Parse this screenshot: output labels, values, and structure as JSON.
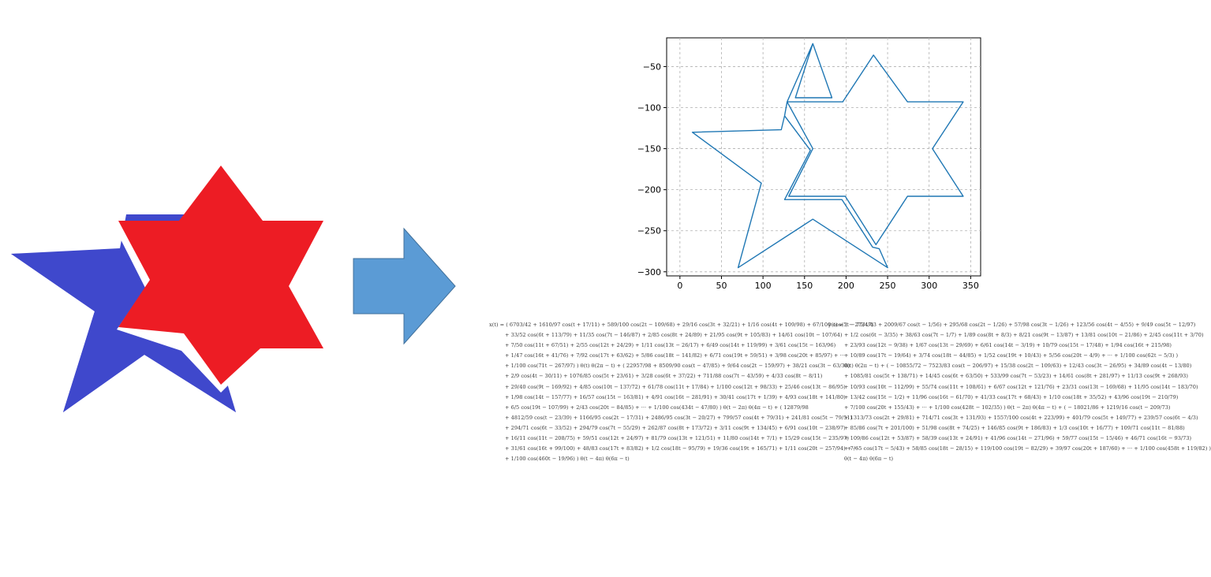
{
  "colors": {
    "blue_star": "#3f48cc",
    "red_star": "#ed1c24",
    "arrow_fill": "#5b9bd5",
    "arrow_stroke": "#41719c",
    "plot_line": "#1f77b4"
  },
  "chart_data": {
    "type": "line",
    "title": "",
    "xlabel": "",
    "ylabel": "",
    "xlim": [
      -16,
      362
    ],
    "ylim": [
      -305,
      -15
    ],
    "grid": true,
    "x_ticks": [
      "0",
      "50",
      "100",
      "150",
      "200",
      "250",
      "300",
      "350"
    ],
    "y_ticks": [
      "-50",
      "-100",
      "-150",
      "-200",
      "-250",
      "-300"
    ],
    "series": [
      {
        "values_xy": [
          [
            160,
            -22
          ],
          [
            139,
            -88
          ],
          [
            183,
            -88
          ],
          [
            160,
            -22
          ],
          [
            129,
            -93
          ],
          [
            196,
            -93
          ],
          [
            233,
            -36
          ],
          [
            274,
            -93
          ],
          [
            341,
            -93
          ],
          [
            304,
            -150
          ],
          [
            341,
            -208
          ],
          [
            274,
            -208
          ],
          [
            236,
            -267
          ],
          [
            199,
            -208
          ],
          [
            131,
            -208
          ],
          [
            160,
            -150
          ],
          [
            129,
            -93
          ],
          [
            126,
            -110
          ],
          [
            122,
            -127
          ],
          [
            15,
            -130
          ],
          [
            98,
            -192
          ],
          [
            70,
            -295
          ],
          [
            160,
            -236
          ],
          [
            250,
            -295
          ],
          [
            240,
            -272
          ],
          [
            232,
            -270
          ],
          [
            195,
            -212
          ],
          [
            126,
            -212
          ],
          [
            157,
            -152
          ],
          [
            126,
            -110
          ]
        ]
      }
    ]
  },
  "formulas": {
    "x_lines": [
      "x(t) = ( 6703/42 + 1610/97 cos(t + 17/11) + 589/100 cos(2t − 109/68) + 29/16 cos(3t + 32/21) + 1/16 cos(4t + 109/98) + 67/100 cos(5t − 75/47)",
      "+ 33/52 cos(6t + 113/79) + 11/35 cos(7t − 146/87) + 2/85 cos(8t + 24/89) + 21/95 cos(9t + 105/83) + 14/61 cos(10t − 107/64)",
      "+ 7/50 cos(11t + 67/51) + 2/55 cos(12t + 24/29) + 1/11 cos(13t − 26/17) + 6/49 cos(14t + 119/99) + 3/61 cos(15t − 163/96)",
      "+ 1/47 cos(16t + 41/76) + 7/92 cos(17t + 63/62) + 5/86 cos(18t − 141/82) + 6/71 cos(19t + 59/51) + 3/98 cos(20t + 85/97) + ···",
      "+ 1/100 cos(71t − 267/97) ) θ(t) θ(2π − t) + ( 22957/98 + 8509/90 cos(t − 47/85) + 9/64 cos(2t − 159/97) + 38/21 cos(3t − 63/38)",
      "+ 2/9 cos(4t − 30/11) + 1076/85 cos(5t + 23/61) + 3/28 cos(6t + 37/22) + 711/88 cos(7t − 43/59) + 4/33 cos(8t − 8/11)",
      "+ 29/40 cos(9t − 169/92) + 4/85 cos(10t − 137/72) + 61/78 cos(11t + 17/84) + 1/100 cos(12t + 98/33) + 25/46 cos(13t − 86/95)",
      "+ 1/98 cos(14t − 157/77) + 16/57 cos(15t − 163/81) + 4/91 cos(16t − 281/91) + 30/41 cos(17t + 1/39) + 4/93 cos(18t + 141/80)",
      "+ 6/5 cos(19t − 107/99) + 2/43 cos(20t − 84/85) + ··· + 1/100 cos(434t − 47/80) ) θ(t − 2π) θ(4π − t) + ( 12879/98",
      "+ 4812/59 cos(t − 23/39) + 1166/95 cos(2t − 17/31) + 2486/95 cos(3t − 20/27) + 799/57 cos(4t + 79/31) + 241/81 cos(5t − 79/51)",
      "+ 294/71 cos(6t − 33/52) + 294/79 cos(7t − 55/29) + 262/87 cos(8t + 173/72) + 3/11 cos(9t + 134/45) + 6/91 cos(10t − 238/97)",
      "+ 16/11 cos(11t − 208/75) + 59/51 cos(12t + 24/97) + 81/79 cos(13t + 121/51) + 11/80 cos(14t + 7/1) + 15/29 cos(15t − 235/97)",
      "+ 31/61 cos(16t + 99/100) + 48/83 cos(17t + 83/82) + 1/2 cos(18t − 95/79) + 19/36 cos(19t + 165/71) + 1/11 cos(20t − 257/94) + ···",
      "+ 1/100 cos(460t − 19/96) ) θ(t − 4π) θ(6π − t)"
    ],
    "y_lines": [
      "y(t) = ( − 2734/43 + 2009/67 cos(t − 1/56) + 295/68 cos(2t − 1/26) + 57/98 cos(3t − 1/26) + 123/56 cos(4t − 4/55) + 9/49 cos(5t − 12/97)",
      "+ 1/2 cos(6t − 3/35) + 38/63 cos(7t − 1/7) + 1/89 cos(8t + 8/3) + 8/21 cos(9t − 13/87) + 13/81 cos(10t − 21/86) + 2/45 cos(11t + 3/70)",
      "+ 23/93 cos(12t − 9/38) + 1/67 cos(13t − 29/69) + 6/61 cos(14t − 3/19) + 10/79 cos(15t − 17/48) + 1/94 cos(16t + 215/98)",
      "+ 10/89 cos(17t − 19/64) + 3/74 cos(18t − 44/85) + 1/52 cos(19t + 10/43) + 5/56 cos(20t − 4/9) + ··· + 1/100 cos(62t − 5/3) )",
      "θ(t) θ(2π − t) + ( − 10855/72 − 7523/83 cos(t − 206/97) + 15/38 cos(2t − 109/63) + 12/43 cos(3t − 26/95) + 34/89 cos(4t − 13/80)",
      "+ 1085/81 cos(5t + 138/71) + 14/45 cos(6t + 63/50) + 533/99 cos(7t − 53/23) + 14/61 cos(8t + 281/97) + 11/13 cos(9t + 268/93)",
      "+ 10/93 cos(10t − 112/99) + 55/74 cos(11t + 108/61) + 6/67 cos(12t + 121/76) + 23/31 cos(13t − 169/68) + 11/95 cos(14t − 183/70)",
      "+ 13/42 cos(15t − 1/2) + 11/96 cos(16t − 61/70) + 41/33 cos(17t + 68/43) + 1/10 cos(18t + 35/52) + 43/96 cos(19t − 210/79)",
      "+ 7/100 cos(20t + 155/43) + ··· + 1/100 cos(428t − 102/35) ) θ(t − 2π) θ(4π − t) + ( − 18021/86 + 1219/16 cos(t − 209/73)",
      "+ 1313/73 cos(2t + 29/81) + 714/71 cos(3t + 131/93) + 1557/100 cos(4t + 223/99) + 401/79 cos(5t + 149/77) + 239/57 cos(6t − 4/3)",
      "+ 85/86 cos(7t + 201/100) + 51/98 cos(8t + 74/25) + 146/85 cos(9t + 186/83) + 1/3 cos(10t + 16/77) + 109/71 cos(11t − 81/88)",
      "+ 109/86 cos(12t + 53/87) + 58/39 cos(13t + 24/91) + 41/96 cos(14t − 271/96) + 59/77 cos(15t − 15/46) + 46/71 cos(16t − 93/73)",
      "+ 7/65 cos(17t − 5/43) + 58/85 cos(18t − 28/15) + 119/100 cos(19t − 82/29) + 39/97 cos(20t + 187/60) + ··· + 1/100 cos(458t + 119/82) )",
      "θ(t − 4π) θ(6π − t)"
    ]
  }
}
